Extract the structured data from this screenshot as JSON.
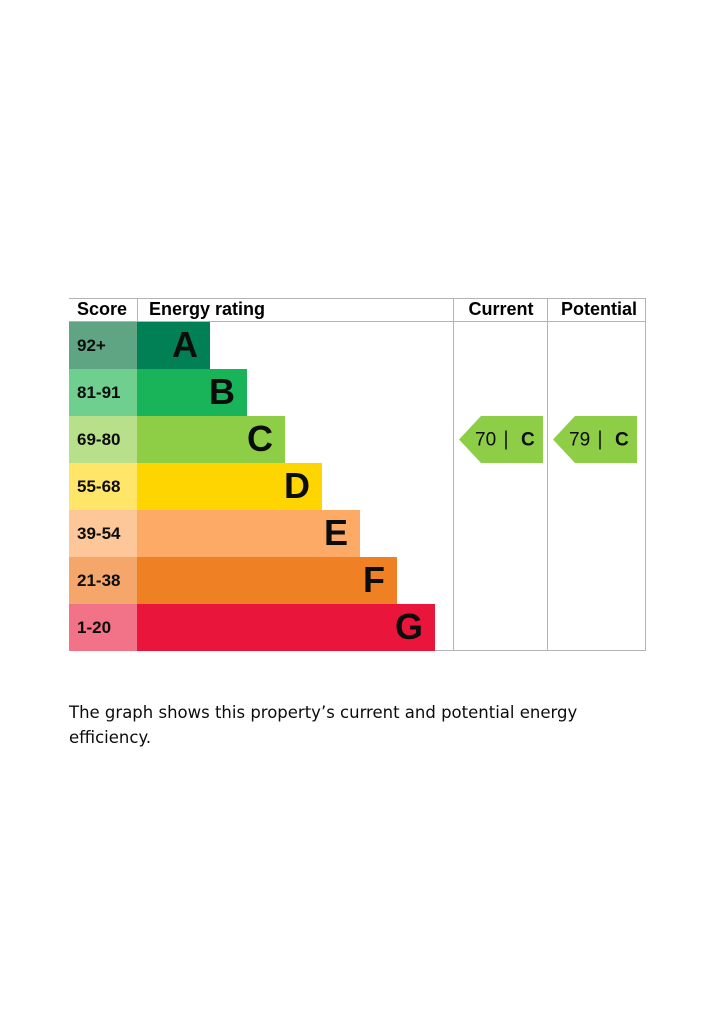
{
  "header": {
    "score": "Score",
    "rating": "Energy rating",
    "current": "Current",
    "potential": "Potential"
  },
  "bands": [
    {
      "score": "92+",
      "letter": "A",
      "color": "#008054",
      "score_color": "#5fa584"
    },
    {
      "score": "81-91",
      "letter": "B",
      "color": "#19b459",
      "score_color": "#6fcf8f"
    },
    {
      "score": "69-80",
      "letter": "C",
      "color": "#8dce46",
      "score_color": "#b8e08a"
    },
    {
      "score": "55-68",
      "letter": "D",
      "color": "#ffd500",
      "score_color": "#ffe568"
    },
    {
      "score": "39-54",
      "letter": "E",
      "color": "#fcaa65",
      "score_color": "#fdc79a"
    },
    {
      "score": "21-38",
      "letter": "F",
      "color": "#ef8023",
      "score_color": "#f4a66b"
    },
    {
      "score": "1-20",
      "letter": "G",
      "color": "#e9153b",
      "score_color": "#f27288"
    }
  ],
  "current": {
    "value": 70,
    "letter": "C"
  },
  "potential": {
    "value": 79,
    "letter": "C"
  },
  "caption": "The graph shows this property’s current and potential energy efficiency."
}
